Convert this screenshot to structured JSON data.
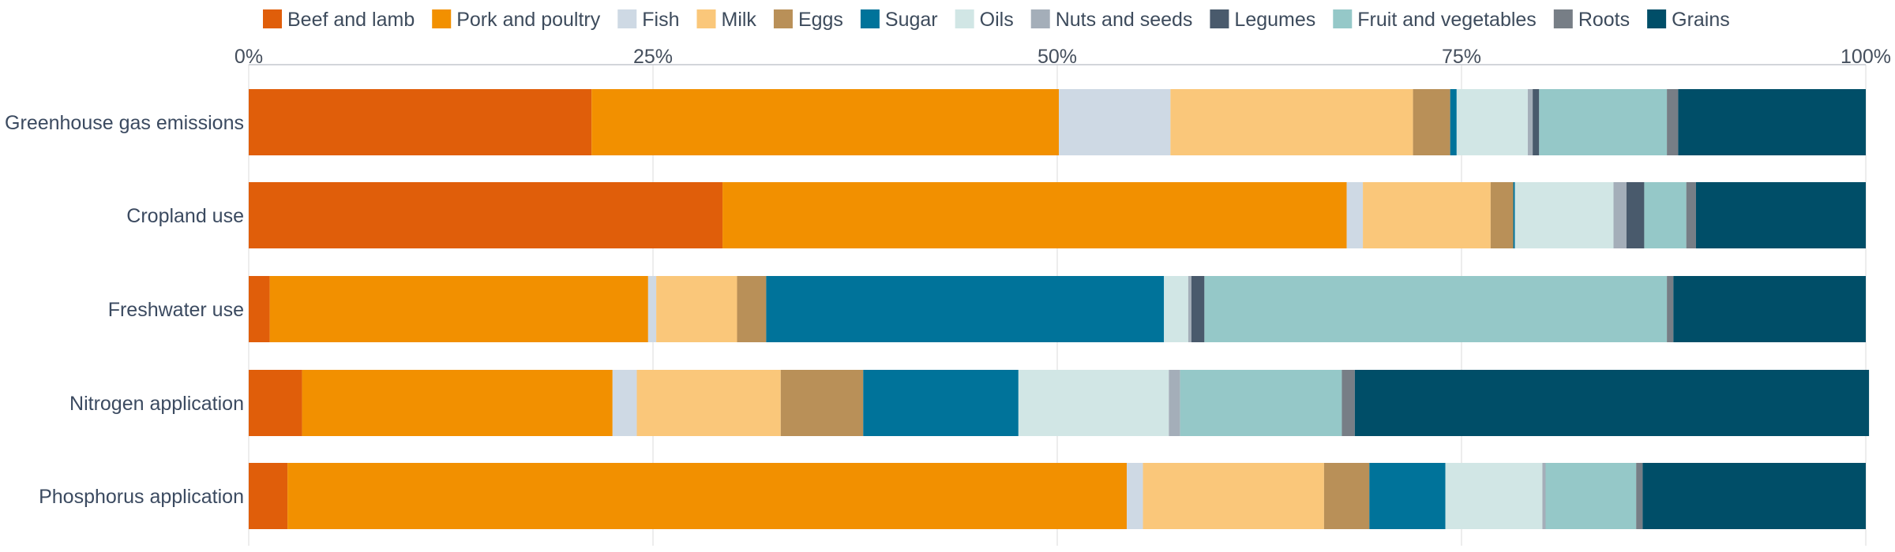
{
  "chart_data": {
    "type": "bar",
    "orientation": "horizontal",
    "stacked": true,
    "xlim": [
      0,
      100
    ],
    "x_ticks": [
      {
        "value": 0,
        "label": "0%"
      },
      {
        "value": 25,
        "label": "25%"
      },
      {
        "value": 50,
        "label": "50%"
      },
      {
        "value": 75,
        "label": "75%"
      },
      {
        "value": 100,
        "label": "100%"
      }
    ],
    "grid": true,
    "legend_position": "top",
    "categories": [
      "Greenhouse gas emissions",
      "Cropland use",
      "Freshwater use",
      "Nitrogen application",
      "Phosphorus application"
    ],
    "series": [
      {
        "name": "Beef and lamb",
        "color": "#e05e0a",
        "values": [
          21.2,
          29.3,
          1.3,
          3.3,
          2.4
        ]
      },
      {
        "name": "Pork and poultry",
        "color": "#f29000",
        "values": [
          28.9,
          38.6,
          23.4,
          19.2,
          51.9
        ]
      },
      {
        "name": "Fish",
        "color": "#ced9e4",
        "values": [
          6.9,
          1.0,
          0.5,
          1.5,
          1.0
        ]
      },
      {
        "name": "Milk",
        "color": "#fac77a",
        "values": [
          15.0,
          7.9,
          5.0,
          8.9,
          11.2
        ]
      },
      {
        "name": "Eggs",
        "color": "#b99058",
        "values": [
          2.3,
          1.4,
          1.8,
          5.1,
          2.8
        ]
      },
      {
        "name": "Sugar",
        "color": "#00739a",
        "values": [
          0.4,
          0.1,
          24.6,
          9.6,
          4.7
        ]
      },
      {
        "name": "Oils",
        "color": "#d1e6e5",
        "values": [
          4.4,
          6.1,
          1.5,
          9.3,
          6.0
        ]
      },
      {
        "name": "Nuts and seeds",
        "color": "#a4aeb9",
        "values": [
          0.3,
          0.8,
          0.2,
          0.7,
          0.2
        ]
      },
      {
        "name": "Legumes",
        "color": "#495a6c",
        "values": [
          0.4,
          1.1,
          0.8,
          0.0,
          0.0
        ]
      },
      {
        "name": "Fruit and vegetables",
        "color": "#95c8c8",
        "values": [
          7.9,
          2.6,
          28.6,
          10.0,
          5.6
        ]
      },
      {
        "name": "Roots",
        "color": "#777e86",
        "values": [
          0.7,
          0.6,
          0.4,
          0.8,
          0.4
        ]
      },
      {
        "name": "Grains",
        "color": "#004e68",
        "values": [
          11.6,
          10.5,
          11.9,
          31.8,
          13.8
        ]
      }
    ]
  }
}
